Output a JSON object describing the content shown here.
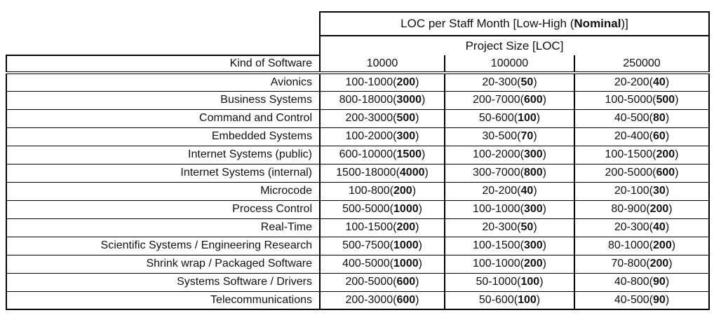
{
  "header": {
    "row1": {
      "pre": "LOC per Staff Month [Low-High (",
      "bold": "Nominal",
      "post": ")]"
    },
    "row2": "Project Size [LOC]",
    "kind_label": "Kind of Software",
    "sizes": [
      "10000",
      "100000",
      "250000"
    ]
  },
  "table": {
    "rows": [
      {
        "kind": "Avionics",
        "cells": [
          {
            "range": "100-1000",
            "nominal": "200"
          },
          {
            "range": "20-300",
            "nominal": "50"
          },
          {
            "range": "20-200",
            "nominal": "40"
          }
        ]
      },
      {
        "kind": "Business Systems",
        "cells": [
          {
            "range": "800-18000",
            "nominal": "3000"
          },
          {
            "range": "200-7000",
            "nominal": "600"
          },
          {
            "range": "100-5000",
            "nominal": "500"
          }
        ]
      },
      {
        "kind": "Command and Control",
        "cells": [
          {
            "range": "200-3000",
            "nominal": "500"
          },
          {
            "range": "50-600",
            "nominal": "100"
          },
          {
            "range": "40-500",
            "nominal": "80"
          }
        ]
      },
      {
        "kind": "Embedded Systems",
        "cells": [
          {
            "range": "100-2000",
            "nominal": "300"
          },
          {
            "range": "30-500",
            "nominal": "70"
          },
          {
            "range": "20-400",
            "nominal": "60"
          }
        ]
      },
      {
        "kind": "Internet Systems (public)",
        "cells": [
          {
            "range": "600-10000",
            "nominal": "1500"
          },
          {
            "range": "100-2000",
            "nominal": "300"
          },
          {
            "range": "100-1500",
            "nominal": "200"
          }
        ]
      },
      {
        "kind": "Internet Systems (internal)",
        "cells": [
          {
            "range": "1500-18000",
            "nominal": "4000"
          },
          {
            "range": "300-7000",
            "nominal": "800"
          },
          {
            "range": "200-5000",
            "nominal": "600"
          }
        ]
      },
      {
        "kind": "Microcode",
        "cells": [
          {
            "range": "100-800",
            "nominal": "200"
          },
          {
            "range": "20-200",
            "nominal": "40"
          },
          {
            "range": "20-100",
            "nominal": "30"
          }
        ]
      },
      {
        "kind": "Process Control",
        "cells": [
          {
            "range": "500-5000",
            "nominal": "1000"
          },
          {
            "range": "100-1000",
            "nominal": "300"
          },
          {
            "range": "80-900",
            "nominal": "200"
          }
        ]
      },
      {
        "kind": "Real-Time",
        "cells": [
          {
            "range": "100-1500",
            "nominal": "200"
          },
          {
            "range": "20-300",
            "nominal": "50"
          },
          {
            "range": "20-300",
            "nominal": "40"
          }
        ]
      },
      {
        "kind": "Scientific Systems / Engineering Research",
        "cells": [
          {
            "range": "500-7500",
            "nominal": "1000"
          },
          {
            "range": "100-1500",
            "nominal": "300"
          },
          {
            "range": "80-1000",
            "nominal": "200"
          }
        ]
      },
      {
        "kind": "Shrink wrap / Packaged Software",
        "cells": [
          {
            "range": "400-5000",
            "nominal": "1000"
          },
          {
            "range": "100-1000",
            "nominal": "200"
          },
          {
            "range": "70-800",
            "nominal": "200"
          }
        ]
      },
      {
        "kind": "Systems Software / Drivers",
        "cells": [
          {
            "range": "200-5000",
            "nominal": "600"
          },
          {
            "range": "50-1000",
            "nominal": "100"
          },
          {
            "range": "40-800",
            "nominal": "90"
          }
        ]
      },
      {
        "kind": "Telecommunications",
        "cells": [
          {
            "range": "200-3000",
            "nominal": "600"
          },
          {
            "range": "50-600",
            "nominal": "100"
          },
          {
            "range": "40-500",
            "nominal": "90"
          }
        ]
      }
    ]
  },
  "colors": {
    "border": "#000000",
    "text": "#111111",
    "background": "#ffffff"
  }
}
